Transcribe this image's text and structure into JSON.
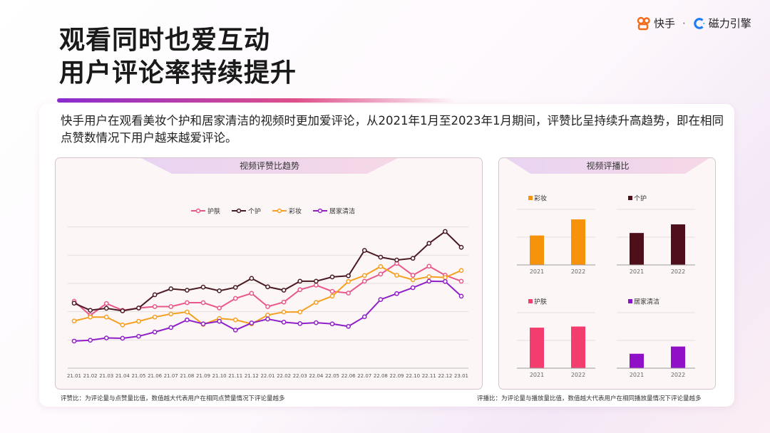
{
  "title": {
    "line1": "观看同时也爱互动",
    "line2": "用户评论率持续提升"
  },
  "logo": {
    "brand1": "快手",
    "separator": "·",
    "brand2": "磁力引擎"
  },
  "description": "快手用户在观看美妆个护和居家清洁的视频时更加爱评论，从2021年1月至2023年1月期间，评赞比呈持续升高趋势，即在相同点赞数情况下用户越来越爱评论。",
  "notes": {
    "left": "评赞比：为评论量与点赞量比值，数值越大代表用户在相同点赞量情况下评论量越多",
    "right": "评播比：为评论量与播放量比值，数值越大代表用户在相同播放量情况下评论量越多"
  },
  "chart_data": [
    {
      "type": "line",
      "title": "视频评赞比趋势",
      "legend_position": "top",
      "grid": true,
      "ylim": [
        0,
        6
      ],
      "categories": [
        "21.01",
        "21.02",
        "21.03",
        "21.04",
        "21.05",
        "21.06",
        "21.07",
        "21.08",
        "21.09",
        "21.10",
        "21.11",
        "21.12",
        "22.01",
        "22.02",
        "22.03",
        "22.04",
        "22.05",
        "22.06",
        "22.07",
        "22.08",
        "22.09",
        "22.10",
        "22.11",
        "22.12",
        "23.01"
      ],
      "series": [
        {
          "name": "护肤",
          "color": "#e8588a",
          "values": [
            2.37,
            1.87,
            2.29,
            2.05,
            2.13,
            2.18,
            2.18,
            2.32,
            2.32,
            2.13,
            2.47,
            2.65,
            2.18,
            2.34,
            2.78,
            2.94,
            2.72,
            2.66,
            3.08,
            3.33,
            3.71,
            3.29,
            3.61,
            3.29,
            3.08
          ]
        },
        {
          "name": "个护",
          "color": "#4a1a22",
          "values": [
            2.3,
            2.05,
            2.12,
            2.03,
            2.13,
            2.6,
            2.81,
            2.76,
            2.87,
            2.74,
            2.86,
            3.18,
            2.88,
            2.76,
            3.08,
            3.08,
            3.23,
            3.27,
            4.17,
            3.93,
            3.83,
            3.89,
            4.42,
            4.84,
            4.28
          ]
        },
        {
          "name": "彩妆",
          "color": "#f5a020",
          "values": [
            1.67,
            1.81,
            1.81,
            1.53,
            1.66,
            1.81,
            1.92,
            1.99,
            1.55,
            1.76,
            1.71,
            1.57,
            1.88,
            1.99,
            1.99,
            2.33,
            2.55,
            3.07,
            3.28,
            3.6,
            3.29,
            3.13,
            3.24,
            3.21,
            3.46
          ]
        },
        {
          "name": "居家清洁",
          "color": "#9020c8",
          "values": [
            0.96,
            0.99,
            1.07,
            1.06,
            1.13,
            1.28,
            1.44,
            1.71,
            1.57,
            1.66,
            1.35,
            1.6,
            1.74,
            1.63,
            1.58,
            1.61,
            1.57,
            1.48,
            1.82,
            2.43,
            2.64,
            2.85,
            3.08,
            3.07,
            2.55
          ]
        }
      ]
    },
    {
      "type": "bar",
      "title": "视频评播比",
      "ylim": [
        0,
        2
      ],
      "grid": true,
      "panels": [
        {
          "name": "彩妆",
          "color": "#f7930a",
          "categories": [
            "2021",
            "2022"
          ],
          "values": [
            1.06,
            1.64
          ]
        },
        {
          "name": "个护",
          "color": "#4e0e1a",
          "categories": [
            "2021",
            "2022"
          ],
          "values": [
            1.15,
            1.46
          ]
        },
        {
          "name": "护肤",
          "color": "#f23d6e",
          "categories": [
            "2021",
            "2022"
          ],
          "values": [
            1.46,
            1.5
          ]
        },
        {
          "name": "居家清洁",
          "color": "#9010c8",
          "categories": [
            "2021",
            "2022"
          ],
          "values": [
            0.52,
            0.78
          ]
        }
      ]
    }
  ]
}
